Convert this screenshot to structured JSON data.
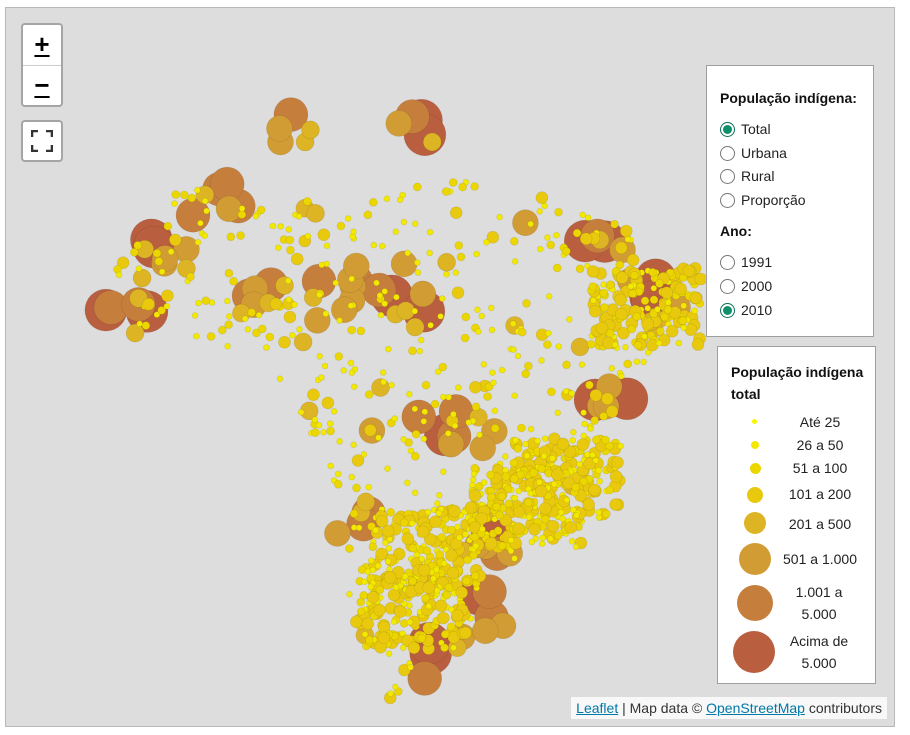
{
  "map": {
    "zoom_in_label": "+",
    "zoom_out_label": "−",
    "colors": {
      "background": "#dddddd",
      "bins": [
        "#f7f700",
        "#f2e800",
        "#ecd600",
        "#e8c90e",
        "#dcb424",
        "#d19c34",
        "#c67e3c",
        "#b95f40"
      ]
    }
  },
  "layer_control": {
    "title_pop": "População indígena:",
    "options_pop": [
      {
        "label": "Total",
        "selected": true
      },
      {
        "label": "Urbana",
        "selected": false
      },
      {
        "label": "Rural",
        "selected": false
      },
      {
        "label": "Proporção",
        "selected": false
      }
    ],
    "title_year": "Ano:",
    "options_year": [
      {
        "label": "1991",
        "selected": false
      },
      {
        "label": "2000",
        "selected": false
      },
      {
        "label": "2010",
        "selected": true
      }
    ]
  },
  "legend": {
    "title": "População indígena total",
    "items": [
      {
        "label": "Até 25",
        "color": "#f7f700"
      },
      {
        "label": "26 a 50",
        "color": "#f2e800"
      },
      {
        "label": "51 a 100",
        "color": "#ecd600"
      },
      {
        "label": "101 a 200",
        "color": "#e8c90e"
      },
      {
        "label": "201 a 500",
        "color": "#dcb424"
      },
      {
        "label": "501 a 1.000",
        "color": "#d19c34"
      },
      {
        "label": "1.001 a 5.000",
        "color": "#c67e3c"
      },
      {
        "label": "Acima de 5.000",
        "color": "#b95f40"
      }
    ]
  },
  "attribution": {
    "leaflet": "Leaflet",
    "separator": " | Map data © ",
    "osm": "OpenStreetMap",
    "suffix": " contributors"
  }
}
